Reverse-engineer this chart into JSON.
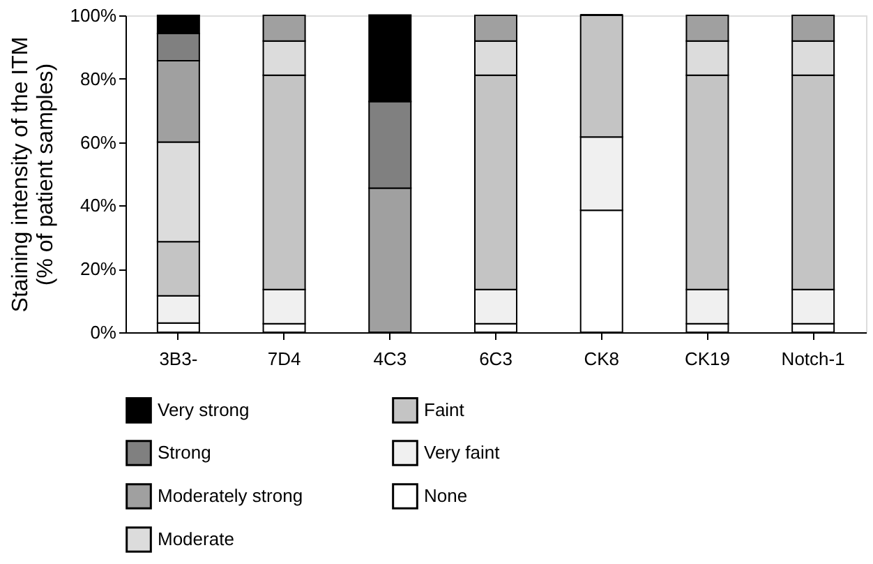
{
  "chart_data": {
    "type": "bar",
    "stacked": true,
    "ylabel": "Staining intensity of the ITM\n(% of patient samples)",
    "categories": [
      "3B3-",
      "7D4",
      "4C3",
      "6C3",
      "CK8",
      "CK19",
      "Notch-1"
    ],
    "series": [
      {
        "name": "None",
        "color": "#ffffff",
        "values": [
          2.9,
          2.7,
          0,
          2.7,
          38.5,
          2.7,
          2.7
        ]
      },
      {
        "name": "Very faint",
        "color": "#f0f0f0",
        "values": [
          8.6,
          10.8,
          0,
          10.8,
          23.1,
          10.8,
          10.8
        ]
      },
      {
        "name": "Faint",
        "color": "#c4c4c4",
        "values": [
          17.1,
          67.6,
          0,
          67.6,
          38.5,
          67.6,
          67.6
        ]
      },
      {
        "name": "Moderate",
        "color": "#dcdcdc",
        "values": [
          31.4,
          10.8,
          0,
          10.8,
          0,
          10.8,
          10.8
        ]
      },
      {
        "name": "Moderately strong",
        "color": "#a0a0a0",
        "values": [
          25.7,
          8.1,
          45.5,
          8.1,
          0,
          8.1,
          8.1
        ]
      },
      {
        "name": "Strong",
        "color": "#808080",
        "values": [
          8.6,
          0,
          27.3,
          0,
          0,
          0,
          0
        ]
      },
      {
        "name": "Very strong",
        "color": "#000000",
        "values": [
          5.7,
          0,
          27.3,
          0,
          0,
          0,
          0
        ]
      }
    ],
    "ylim": [
      0,
      100
    ],
    "yticks": [
      {
        "value": 0,
        "label": "0%"
      },
      {
        "value": 20,
        "label": "20%"
      },
      {
        "value": 40,
        "label": "40%"
      },
      {
        "value": 60,
        "label": "60%"
      },
      {
        "value": 80,
        "label": "80%"
      },
      {
        "value": 100,
        "label": "100%"
      }
    ],
    "grid": false,
    "legend": "bottom"
  }
}
